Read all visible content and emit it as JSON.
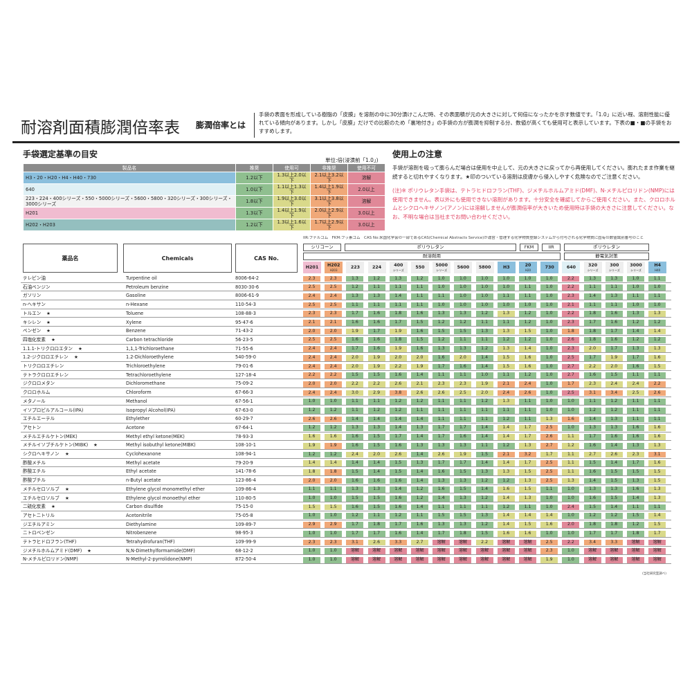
{
  "header": {
    "title": "耐溶剤面積膨潤倍率表",
    "subtitle": "膨潤倍率とは",
    "description": "手袋の表面を形成している樹脂の「皮膜」を溶剤の中に30分漬けこんだ時、その表面積が元の大きさに対して何倍になったかを示す数値です。「1.0」に近い程、溶剤性能に優れている傾向があります。しかし「皮膜」だけでの比較のため「裏地付き」の手袋の方が膨潤を抑制する分、数値が高くても使用可と表示しています。下表の■・■の手袋をおすすめします。"
  },
  "guide": {
    "title": "手袋選定基準の目安",
    "unit": "単位:倍(浸漬前「1.0」)",
    "columns": [
      "製品名",
      "推奨",
      "使用可",
      "非推奨",
      "使用不可"
    ],
    "rows": [
      {
        "name": "H3・20・H20・H4・H40・730",
        "values": [
          "1.2以下",
          "1.3以上2.0以下",
          "2.1以上3.2以下",
          "溶解"
        ],
        "color": "#8bbfdd"
      },
      {
        "name": "640",
        "values": [
          "1.0以下",
          "1.1以上1.3以下",
          "1.4以上1.9以下",
          "2.0以上"
        ],
        "color": "#dff0f5"
      },
      {
        "name": "223・224・400シリーズ・550・5000シリーズ・5600・5800・320シリーズ・300シリーズ・3000シリーズ",
        "values": [
          "1.8以下",
          "1.9以上3.0以下",
          "3.1以上3.8以下",
          "溶解"
        ],
        "color": "#f2f2f2"
      },
      {
        "name": "H201",
        "values": [
          "1.3以下",
          "1.4以上1.9以下",
          "2.0以上2.9以下",
          "3.0以上"
        ],
        "color": "#f0bcd0"
      },
      {
        "name": "H202・H203",
        "values": [
          "1.2以下",
          "1.3以上1.6以下",
          "1.7以上2.9以下",
          "3.0以上"
        ],
        "color": "#94bfbf"
      }
    ]
  },
  "notes": {
    "title": "使用上の注意",
    "text1": "手袋が溶剤を吸って膨らんだ場合は使用を中止して、元の大きさに戻ってから再使用してください。膨れたまま作業を継続すると切れやすくなります。★印のついている溶剤は皮膚から侵入しやすく危険なのでご注意ください。",
    "text2": "(注)※ ポリウレタン手袋は、テトラヒドロフラン(THF)、ジメチルホルムアミド(DMF)、N-メチルピロリドン(NMP)には使用できません。表以外にも使用できない溶剤があります。十分安全を確認してからご使用ください。また、クロロホルムとシクロヘキサノン(アノン)には溶解しませんが膨潤倍率が大きいため使用時は手袋の大きさに注意してください。なお、不明な場合は当社までお問い合わせください。"
  },
  "table": {
    "legend": "IIR:ブチルゴム　FKM:フッ素ゴム　CAS No:米国化学会の一部であるCAS(Chemical Abstracts Service)が運営・管理する化学物質登録システムから付与される化学物質に固有の数値識別番号のこと",
    "col_headers": {
      "jp": "薬品名",
      "en": "Chemicals",
      "cas": "CAS No."
    },
    "groups": {
      "silicone": "シリコーン",
      "pu1": "ポリウレタン",
      "fkm": "FKM",
      "iir": "IIR",
      "pu2": "ポリウレタン",
      "solvent": "耐溶剤用",
      "antistatic": "静電気対策"
    },
    "products": [
      {
        "l1": "H201",
        "l2": "",
        "color": "#f0bcd0",
        "scale": "h201"
      },
      {
        "l1": "H202",
        "l2": "H203",
        "color": "#f0a878",
        "scale": "h202"
      },
      {
        "l1": "223",
        "l2": "",
        "color": "#eeeeee",
        "scale": "c"
      },
      {
        "l1": "224",
        "l2": "",
        "color": "#eeeeee",
        "scale": "c"
      },
      {
        "l1": "400",
        "l2": "シリーズ",
        "color": "#eeeeee",
        "scale": "c"
      },
      {
        "l1": "550",
        "l2": "",
        "color": "#eeeeee",
        "scale": "c"
      },
      {
        "l1": "5000",
        "l2": "シリーズ",
        "color": "#eeeeee",
        "scale": "c"
      },
      {
        "l1": "5600",
        "l2": "",
        "color": "#eeeeee",
        "scale": "c"
      },
      {
        "l1": "5800",
        "l2": "",
        "color": "#eeeeee",
        "scale": "c"
      },
      {
        "l1": "H3",
        "l2": "",
        "color": "#8bbfdd",
        "scale": "a"
      },
      {
        "l1": "20",
        "l2": "H20",
        "color": "#8bbfdd",
        "scale": "a"
      },
      {
        "l1": "730",
        "l2": "",
        "color": "#8bbfdd",
        "scale": "a"
      },
      {
        "l1": "640",
        "l2": "",
        "color": "#dff0f5",
        "scale": "b"
      },
      {
        "l1": "320",
        "l2": "シリーズ",
        "color": "#eeeeee",
        "scale": "c"
      },
      {
        "l1": "300",
        "l2": "シリーズ",
        "color": "#eeeeee",
        "scale": "c"
      },
      {
        "l1": "3000",
        "l2": "シリーズ",
        "color": "#eeeeee",
        "scale": "c"
      },
      {
        "l1": "H4",
        "l2": "H40",
        "color": "#8bbfdd",
        "scale": "a"
      }
    ],
    "rows": [
      {
        "jp": "テレピン油",
        "mark": "",
        "en": "Turpentine oil",
        "cas": "8006-64-2",
        "v": [
          "2.3",
          "2.3",
          "1.3",
          "1.2",
          "1.3",
          "1.2",
          "1.0",
          "1.0",
          "1.0",
          "1.0",
          "1.0",
          "1.0",
          "2.2",
          "1.3",
          "1.3",
          "1.0",
          "1.1"
        ]
      },
      {
        "jp": "石油ベンジン",
        "mark": "",
        "en": "Petroleum benzine",
        "cas": "8030-30-6",
        "v": [
          "2.5",
          "2.5",
          "1.2",
          "1.1",
          "1.1",
          "1.1",
          "1.0",
          "1.0",
          "1.0",
          "1.0",
          "1.1",
          "1.0",
          "2.2",
          "1.1",
          "1.1",
          "1.0",
          "1.0"
        ]
      },
      {
        "jp": "ガソリン",
        "mark": "",
        "en": "Gasoline",
        "cas": "8006-61-9",
        "v": [
          "2.4",
          "2.4",
          "1.3",
          "1.3",
          "1.4",
          "1.1",
          "1.1",
          "1.0",
          "1.0",
          "1.1",
          "1.1",
          "1.0",
          "2.3",
          "1.4",
          "1.3",
          "1.1",
          "1.1"
        ]
      },
      {
        "jp": "n-ヘキサン",
        "mark": "",
        "en": "n-Hexane",
        "cas": "110-54-3",
        "v": [
          "2.5",
          "2.5",
          "1.1",
          "1.1",
          "1.1",
          "1.1",
          "1.0",
          "1.0",
          "1.0",
          "1.0",
          "1.0",
          "1.0",
          "2.1",
          "1.1",
          "1.1",
          "1.0",
          "1.0"
        ]
      },
      {
        "jp": "トルエン",
        "mark": "★",
        "en": "Toluene",
        "cas": "108-88-3",
        "v": [
          "2.3",
          "2.3",
          "1.7",
          "1.6",
          "1.8",
          "1.6",
          "1.3",
          "1.3",
          "1.2",
          "1.3",
          "1.2",
          "1.0",
          "2.2",
          "1.8",
          "1.6",
          "1.3",
          "1.3"
        ]
      },
      {
        "jp": "キシレン",
        "mark": "★",
        "en": "Xylene",
        "cas": "95-47-6",
        "v": [
          "2.1",
          "2.1",
          "1.6",
          "1.6",
          "1.7",
          "1.5",
          "1.2",
          "1.2",
          "1.1",
          "1.1",
          "1.2",
          "1.0",
          "2.3",
          "1.7",
          "1.6",
          "1.2",
          "1.2"
        ]
      },
      {
        "jp": "ベンゼン",
        "mark": "★",
        "en": "Benzene",
        "cas": "71-43-2",
        "v": [
          "2.0",
          "2.0",
          "1.9",
          "1.7",
          "1.9",
          "1.6",
          "1.5",
          "1.5",
          "1.3",
          "1.3",
          "1.5",
          "1.0",
          "1.8",
          "1.8",
          "1.7",
          "1.4",
          "1.4"
        ]
      },
      {
        "jp": "四塩化炭素",
        "mark": "★",
        "en": "Carbon tetrachloride",
        "cas": "56-23-5",
        "v": [
          "2.5",
          "2.5",
          "1.6",
          "1.6",
          "1.8",
          "1.5",
          "1.2",
          "1.1",
          "1.1",
          "1.2",
          "1.2",
          "1.0",
          "2.6",
          "1.8",
          "1.6",
          "1.2",
          "1.2"
        ]
      },
      {
        "jp": "1.1.1-トリクロロエタン",
        "mark": "★",
        "en": "1,1,1-Trichloroethane",
        "cas": "71-55-6",
        "v": [
          "2.4",
          "2.4",
          "1.7",
          "1.6",
          "1.9",
          "1.6",
          "1.3",
          "1.3",
          "1.2",
          "1.3",
          "1.4",
          "1.0",
          "2.3",
          "2.0",
          "1.7",
          "1.3",
          "1.3"
        ]
      },
      {
        "jp": "1.2-ジクロロエチレン",
        "mark": "★",
        "en": "1.2-Dichloroethylene",
        "cas": "540-59-0",
        "v": [
          "2.4",
          "2.4",
          "2.0",
          "1.9",
          "2.0",
          "2.0",
          "1.6",
          "2.0",
          "1.4",
          "1.5",
          "1.6",
          "1.0",
          "2.5",
          "1.7",
          "1.9",
          "1.7",
          "1.6"
        ]
      },
      {
        "jp": "トリクロロエチレン",
        "mark": "",
        "en": "Trichloroethylene",
        "cas": "79-01-6",
        "v": [
          "2.4",
          "2.4",
          "2.0",
          "1.9",
          "2.2",
          "1.9",
          "1.7",
          "1.6",
          "1.4",
          "1.5",
          "1.6",
          "1.0",
          "2.7",
          "2.2",
          "2.0",
          "1.6",
          "1.5"
        ]
      },
      {
        "jp": "テトラクロロエチレン",
        "mark": "",
        "en": "Tetrachloroethylene",
        "cas": "127-18-4",
        "v": [
          "2.2",
          "2.2",
          "1.5",
          "1.5",
          "1.6",
          "1.4",
          "1.1",
          "1.1",
          "1.0",
          "1.1",
          "1.2",
          "1.0",
          "2.7",
          "1.6",
          "1.5",
          "1.1",
          "1.1"
        ]
      },
      {
        "jp": "ジクロロメタン",
        "mark": "",
        "en": "Dichloromethane",
        "cas": "75-09-2",
        "v": [
          "2.0",
          "2.0",
          "2.2",
          "2.2",
          "2.6",
          "2.1",
          "2.3",
          "2.3",
          "1.9",
          "2.1",
          "2.4",
          "1.0",
          "1.7",
          "2.3",
          "2.4",
          "2.4",
          "2.2"
        ]
      },
      {
        "jp": "クロロホルム",
        "mark": "",
        "en": "Chloroform",
        "cas": "67-66-3",
        "v": [
          "2.4",
          "2.4",
          "3.0",
          "2.9",
          "3.8",
          "2.6",
          "2.6",
          "2.5",
          "2.0",
          "2.4",
          "2.6",
          "1.0",
          "2.5",
          "3.1",
          "3.4",
          "2.5",
          "2.6"
        ]
      },
      {
        "jp": "メタノール",
        "mark": "",
        "en": "Methanol",
        "cas": "67-56-1",
        "v": [
          "1.0",
          "1.0",
          "1.1",
          "1.1",
          "1.2",
          "1.2",
          "1.1",
          "1.1",
          "1.2",
          "1.3",
          "1.1",
          "1.0",
          "1.0",
          "1.1",
          "1.2",
          "1.1",
          "1.1"
        ]
      },
      {
        "jp": "イソプロピルアルコール(IPA)",
        "mark": "",
        "en": "Isopropyl Alcohol(IPA)",
        "cas": "67-63-0",
        "v": [
          "1.2",
          "1.2",
          "1.1",
          "1.2",
          "1.2",
          "1.1",
          "1.1",
          "1.1",
          "1.1",
          "1.1",
          "1.1",
          "1.0",
          "1.0",
          "1.2",
          "1.2",
          "1.1",
          "1.1"
        ]
      },
      {
        "jp": "エチルエーテル",
        "mark": "",
        "en": "Ethylether",
        "cas": "60-29-7",
        "v": [
          "2.6",
          "2.6",
          "1.4",
          "1.4",
          "1.4",
          "1.4",
          "1.1",
          "1.1",
          "1.1",
          "1.2",
          "1.1",
          "1.3",
          "1.6",
          "1.4",
          "1.3",
          "1.1",
          "1.1"
        ]
      },
      {
        "jp": "アセトン",
        "mark": "",
        "en": "Acetone",
        "cas": "67-64-1",
        "v": [
          "1.2",
          "1.2",
          "1.3",
          "1.3",
          "1.4",
          "1.3",
          "1.7",
          "1.7",
          "1.4",
          "1.4",
          "1.7",
          "2.5",
          "1.0",
          "1.3",
          "1.3",
          "1.6",
          "1.6"
        ]
      },
      {
        "jp": "メチルエチルケトン(MEK)",
        "mark": "",
        "en": "Methyl ethyl ketone(MEK)",
        "cas": "78-93-3",
        "v": [
          "1.6",
          "1.6",
          "1.6",
          "1.5",
          "1.7",
          "1.4",
          "1.7",
          "1.6",
          "1.4",
          "1.4",
          "1.7",
          "2.6",
          "1.1",
          "1.7",
          "1.6",
          "1.6",
          "1.6"
        ]
      },
      {
        "jp": "メチルイソブチルケトン(MIBK)",
        "mark": "★",
        "en": "Methyl isobuthyl ketone(MIBK)",
        "cas": "108-10-1",
        "v": [
          "1.9",
          "1.9",
          "1.6",
          "1.5",
          "1.6",
          "1.3",
          "1.3",
          "1.3",
          "1.1",
          "1.2",
          "1.3",
          "2.7",
          "1.2",
          "1.6",
          "1.4",
          "1.3",
          "1.3"
        ]
      },
      {
        "jp": "シクロヘキサノン",
        "mark": "★",
        "en": "Cyclohexanone",
        "cas": "108-94-1",
        "v": [
          "1.2",
          "1.2",
          "2.4",
          "2.0",
          "2.6",
          "1.4",
          "2.6",
          "1.9",
          "1.5",
          "2.1",
          "3.2",
          "1.7",
          "1.1",
          "2.7",
          "2.6",
          "2.3",
          "3.1"
        ]
      },
      {
        "jp": "酢酸メチル",
        "mark": "",
        "en": "Methyl acetate",
        "cas": "79-20-9",
        "v": [
          "1.4",
          "1.4",
          "1.4",
          "1.4",
          "1.5",
          "1.3",
          "1.7",
          "1.7",
          "1.4",
          "1.4",
          "1.7",
          "2.5",
          "1.1",
          "1.5",
          "1.4",
          "1.7",
          "1.6"
        ]
      },
      {
        "jp": "酢酸エチル",
        "mark": "",
        "en": "Ethyl acetate",
        "cas": "141-78-6",
        "v": [
          "1.8",
          "1.8",
          "1.5",
          "1.4",
          "1.5",
          "1.4",
          "1.6",
          "1.5",
          "1.3",
          "1.3",
          "1.5",
          "2.5",
          "1.1",
          "1.6",
          "1.5",
          "1.5",
          "1.5"
        ]
      },
      {
        "jp": "酢酸ブチル",
        "mark": "",
        "en": "n-Butyl acetate",
        "cas": "123-86-4",
        "v": [
          "2.0",
          "2.0",
          "1.6",
          "1.6",
          "1.6",
          "1.4",
          "1.3",
          "1.3",
          "1.2",
          "1.2",
          "1.3",
          "2.5",
          "1.3",
          "1.4",
          "1.5",
          "1.3",
          "1.5"
        ]
      },
      {
        "jp": "メチルセロソルブ",
        "mark": "★",
        "en": "Ethylene glycol monomethyl ether",
        "cas": "109-86-4",
        "v": [
          "1.1",
          "1.1",
          "1.3",
          "1.3",
          "1.4",
          "1.2",
          "1.6",
          "1.5",
          "1.4",
          "1.6",
          "1.5",
          "1.1",
          "1.0",
          "1.3",
          "1.3",
          "1.6",
          "1.3"
        ]
      },
      {
        "jp": "エチルセロソルブ",
        "mark": "★",
        "en": "Ethylene glycol monoethyl ether",
        "cas": "110-80-5",
        "v": [
          "1.0",
          "1.0",
          "1.5",
          "1.5",
          "1.6",
          "1.2",
          "1.4",
          "1.3",
          "1.2",
          "1.4",
          "1.3",
          "1.0",
          "1.0",
          "1.6",
          "1.5",
          "1.4",
          "1.3"
        ]
      },
      {
        "jp": "二硫化炭素",
        "mark": "★",
        "en": "Carbon disulfide",
        "cas": "75-15-0",
        "v": [
          "1.5",
          "1.5",
          "1.6",
          "1.5",
          "1.6",
          "1.4",
          "1.1",
          "1.1",
          "1.1",
          "1.2",
          "1.1",
          "1.0",
          "2.4",
          "1.5",
          "1.4",
          "1.1",
          "1.1"
        ]
      },
      {
        "jp": "アセトニトリル",
        "mark": "",
        "en": "Acetonitrile",
        "cas": "75-05-8",
        "v": [
          "1.0",
          "1.0",
          "1.2",
          "1.1",
          "1.2",
          "1.1",
          "1.5",
          "1.5",
          "1.3",
          "1.4",
          "1.4",
          "1.4",
          "1.0",
          "1.2",
          "1.2",
          "1.5",
          "1.4"
        ]
      },
      {
        "jp": "ジエチルアミン",
        "mark": "",
        "en": "Diethylamine",
        "cas": "109-89-7",
        "v": [
          "2.9",
          "2.9",
          "1.7",
          "1.8",
          "1.7",
          "1.6",
          "1.3",
          "1.3",
          "1.2",
          "1.4",
          "1.5",
          "1.6",
          "2.0",
          "1.8",
          "1.8",
          "1.2",
          "1.5"
        ]
      },
      {
        "jp": "ニトロベンゼン",
        "mark": "",
        "en": "Nitrobenzene",
        "cas": "98-95-3",
        "v": [
          "1.0",
          "1.0",
          "1.7",
          "1.7",
          "1.6",
          "1.4",
          "1.7",
          "1.8",
          "1.5",
          "1.6",
          "1.6",
          "1.0",
          "1.0",
          "1.7",
          "1.7",
          "1.8",
          "1.7"
        ]
      },
      {
        "jp": "テトラヒドロフラン(THF)",
        "mark": "",
        "en": "Tetrahydrofuran(THF)",
        "cas": "109-99-9",
        "v": [
          "2.3",
          "2.3",
          "3.1",
          "2.6",
          "3.3",
          "2.7",
          "溶解",
          "溶解",
          "2.2",
          "溶解",
          "溶解",
          "2.5",
          "2.2",
          "3.4",
          "3.3",
          "溶解",
          "溶解"
        ]
      },
      {
        "jp": "ジメチルホルムアミド(DMF)",
        "mark": "★",
        "en": "N,N-Dimethylformamide(DMF)",
        "cas": "68-12-2",
        "v": [
          "1.0",
          "1.0",
          "溶解",
          "溶解",
          "溶解",
          "溶解",
          "溶解",
          "溶解",
          "溶解",
          "溶解",
          "溶解",
          "2.3",
          "1.0",
          "溶解",
          "溶解",
          "溶解",
          "溶解"
        ]
      },
      {
        "jp": "N-メチルピロリドン(NMP)",
        "mark": "",
        "en": "N-Methyl-2-pyrrolidone(NMP)",
        "cas": "872-50-4",
        "v": [
          "1.0",
          "1.0",
          "溶解",
          "溶解",
          "溶解",
          "溶解",
          "溶解",
          "溶解",
          "溶解",
          "溶解",
          "溶解",
          "1.9",
          "1.0",
          "溶解",
          "溶解",
          "溶解",
          "溶解"
        ]
      }
    ],
    "footnote": "(当社研究室調べ)"
  },
  "colors": {
    "recommended": "#8fbf8f",
    "usable": "#d9d98a",
    "not_recommended": "#f0a878",
    "unusable": "#e08898"
  }
}
